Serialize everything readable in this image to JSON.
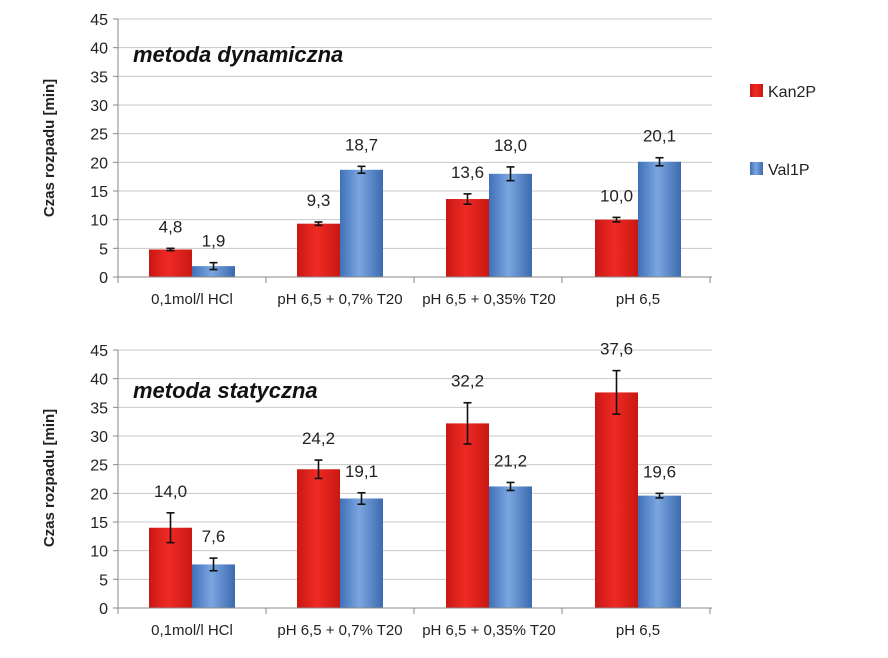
{
  "colors": {
    "series_a": "#e0231f",
    "series_b": "#4a7ec8",
    "grid": "#c8c8c8",
    "axis": "#888888"
  },
  "legend": {
    "items": [
      "Kan2P",
      "Val1P"
    ]
  },
  "chart_data": [
    {
      "type": "bar",
      "title": "metoda dynamiczna",
      "ylabel": "Czas rozpadu  [min]",
      "xlabel": "",
      "ylim": [
        0,
        45
      ],
      "yticks": [
        "0",
        "5",
        "10",
        "15",
        "20",
        "25",
        "30",
        "35",
        "40",
        "45"
      ],
      "grid": true,
      "legend_position": "right",
      "categories": [
        "0,1mol/l HCl",
        "pH 6,5 + 0,7% T20",
        "pH 6,5 + 0,35% T20",
        "pH 6,5"
      ],
      "series": [
        {
          "name": "Kan2P",
          "values": [
            4.8,
            9.3,
            13.6,
            10.0
          ],
          "labels": [
            "4,8",
            "9,3",
            "13,6",
            "10,0"
          ],
          "error": [
            0.2,
            0.3,
            0.9,
            0.4
          ]
        },
        {
          "name": "Val1P",
          "values": [
            1.9,
            18.7,
            18.0,
            20.1
          ],
          "labels": [
            "1,9",
            "18,7",
            "18,0",
            "20,1"
          ],
          "error": [
            0.6,
            0.6,
            1.2,
            0.7
          ]
        }
      ]
    },
    {
      "type": "bar",
      "title": "metoda statyczna",
      "ylabel": "Czas rozpadu  [min]",
      "xlabel": "",
      "ylim": [
        0,
        45
      ],
      "yticks": [
        "0",
        "5",
        "10",
        "15",
        "20",
        "25",
        "30",
        "35",
        "40",
        "45"
      ],
      "grid": true,
      "categories": [
        "0,1mol/l HCl",
        "pH 6,5 + 0,7% T20",
        "pH 6,5 + 0,35% T20",
        "pH 6,5"
      ],
      "series": [
        {
          "name": "Kan2P",
          "values": [
            14.0,
            24.2,
            32.2,
            37.6
          ],
          "labels": [
            "14,0",
            "24,2",
            "32,2",
            "37,6"
          ],
          "error": [
            2.6,
            1.6,
            3.6,
            3.8
          ]
        },
        {
          "name": "Val1P",
          "values": [
            7.6,
            19.1,
            21.2,
            19.6
          ],
          "labels": [
            "7,6",
            "19,1",
            "21,2",
            "19,6"
          ],
          "error": [
            1.1,
            1.0,
            0.7,
            0.4
          ]
        }
      ]
    }
  ]
}
